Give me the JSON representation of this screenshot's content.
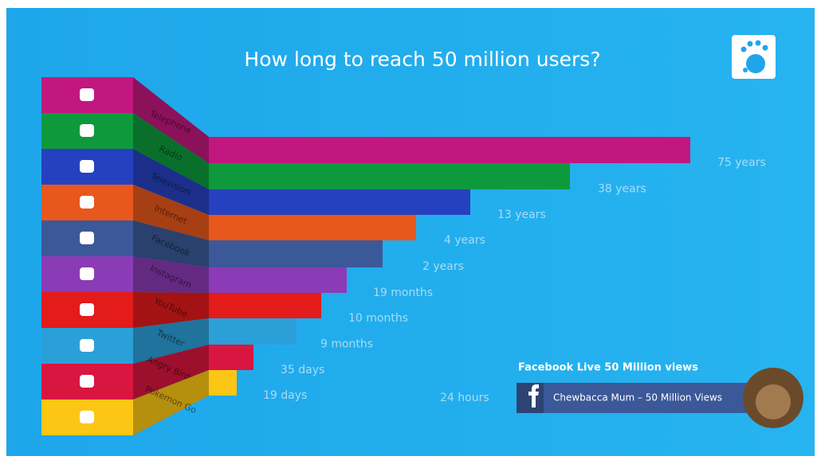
{
  "title": "How long to reach 50 million users?",
  "platforms": [
    {
      "name": "Telephone",
      "time": "75 years",
      "color": "#c2177e"
    },
    {
      "name": "Radio",
      "time": "38 years",
      "color": "#0e9a3c"
    },
    {
      "name": "Television",
      "time": "13 years",
      "color": "#2541c0"
    },
    {
      "name": "Internet",
      "time": "4 years",
      "color": "#e8571c"
    },
    {
      "name": "Facebook",
      "time": "2 years",
      "color": "#3b5998"
    },
    {
      "name": "Instagram",
      "time": "19 months",
      "color": "#8b3bb5"
    },
    {
      "name": "YouTube",
      "time": "10 months",
      "color": "#e31b1b"
    },
    {
      "name": "Twitter",
      "time": "9 months",
      "color": "#2ba0d8"
    },
    {
      "name": "Angry Birds",
      "time": "35 days",
      "color": "#d9163f"
    },
    {
      "name": "Pokemon Go",
      "time": "19 days",
      "color": "#fcc614"
    }
  ],
  "facebook_live": {
    "heading": "Facebook Live 50 Million views",
    "time": "24 hours",
    "caption": "Chewbacca Mum – 50 Million Views"
  }
}
